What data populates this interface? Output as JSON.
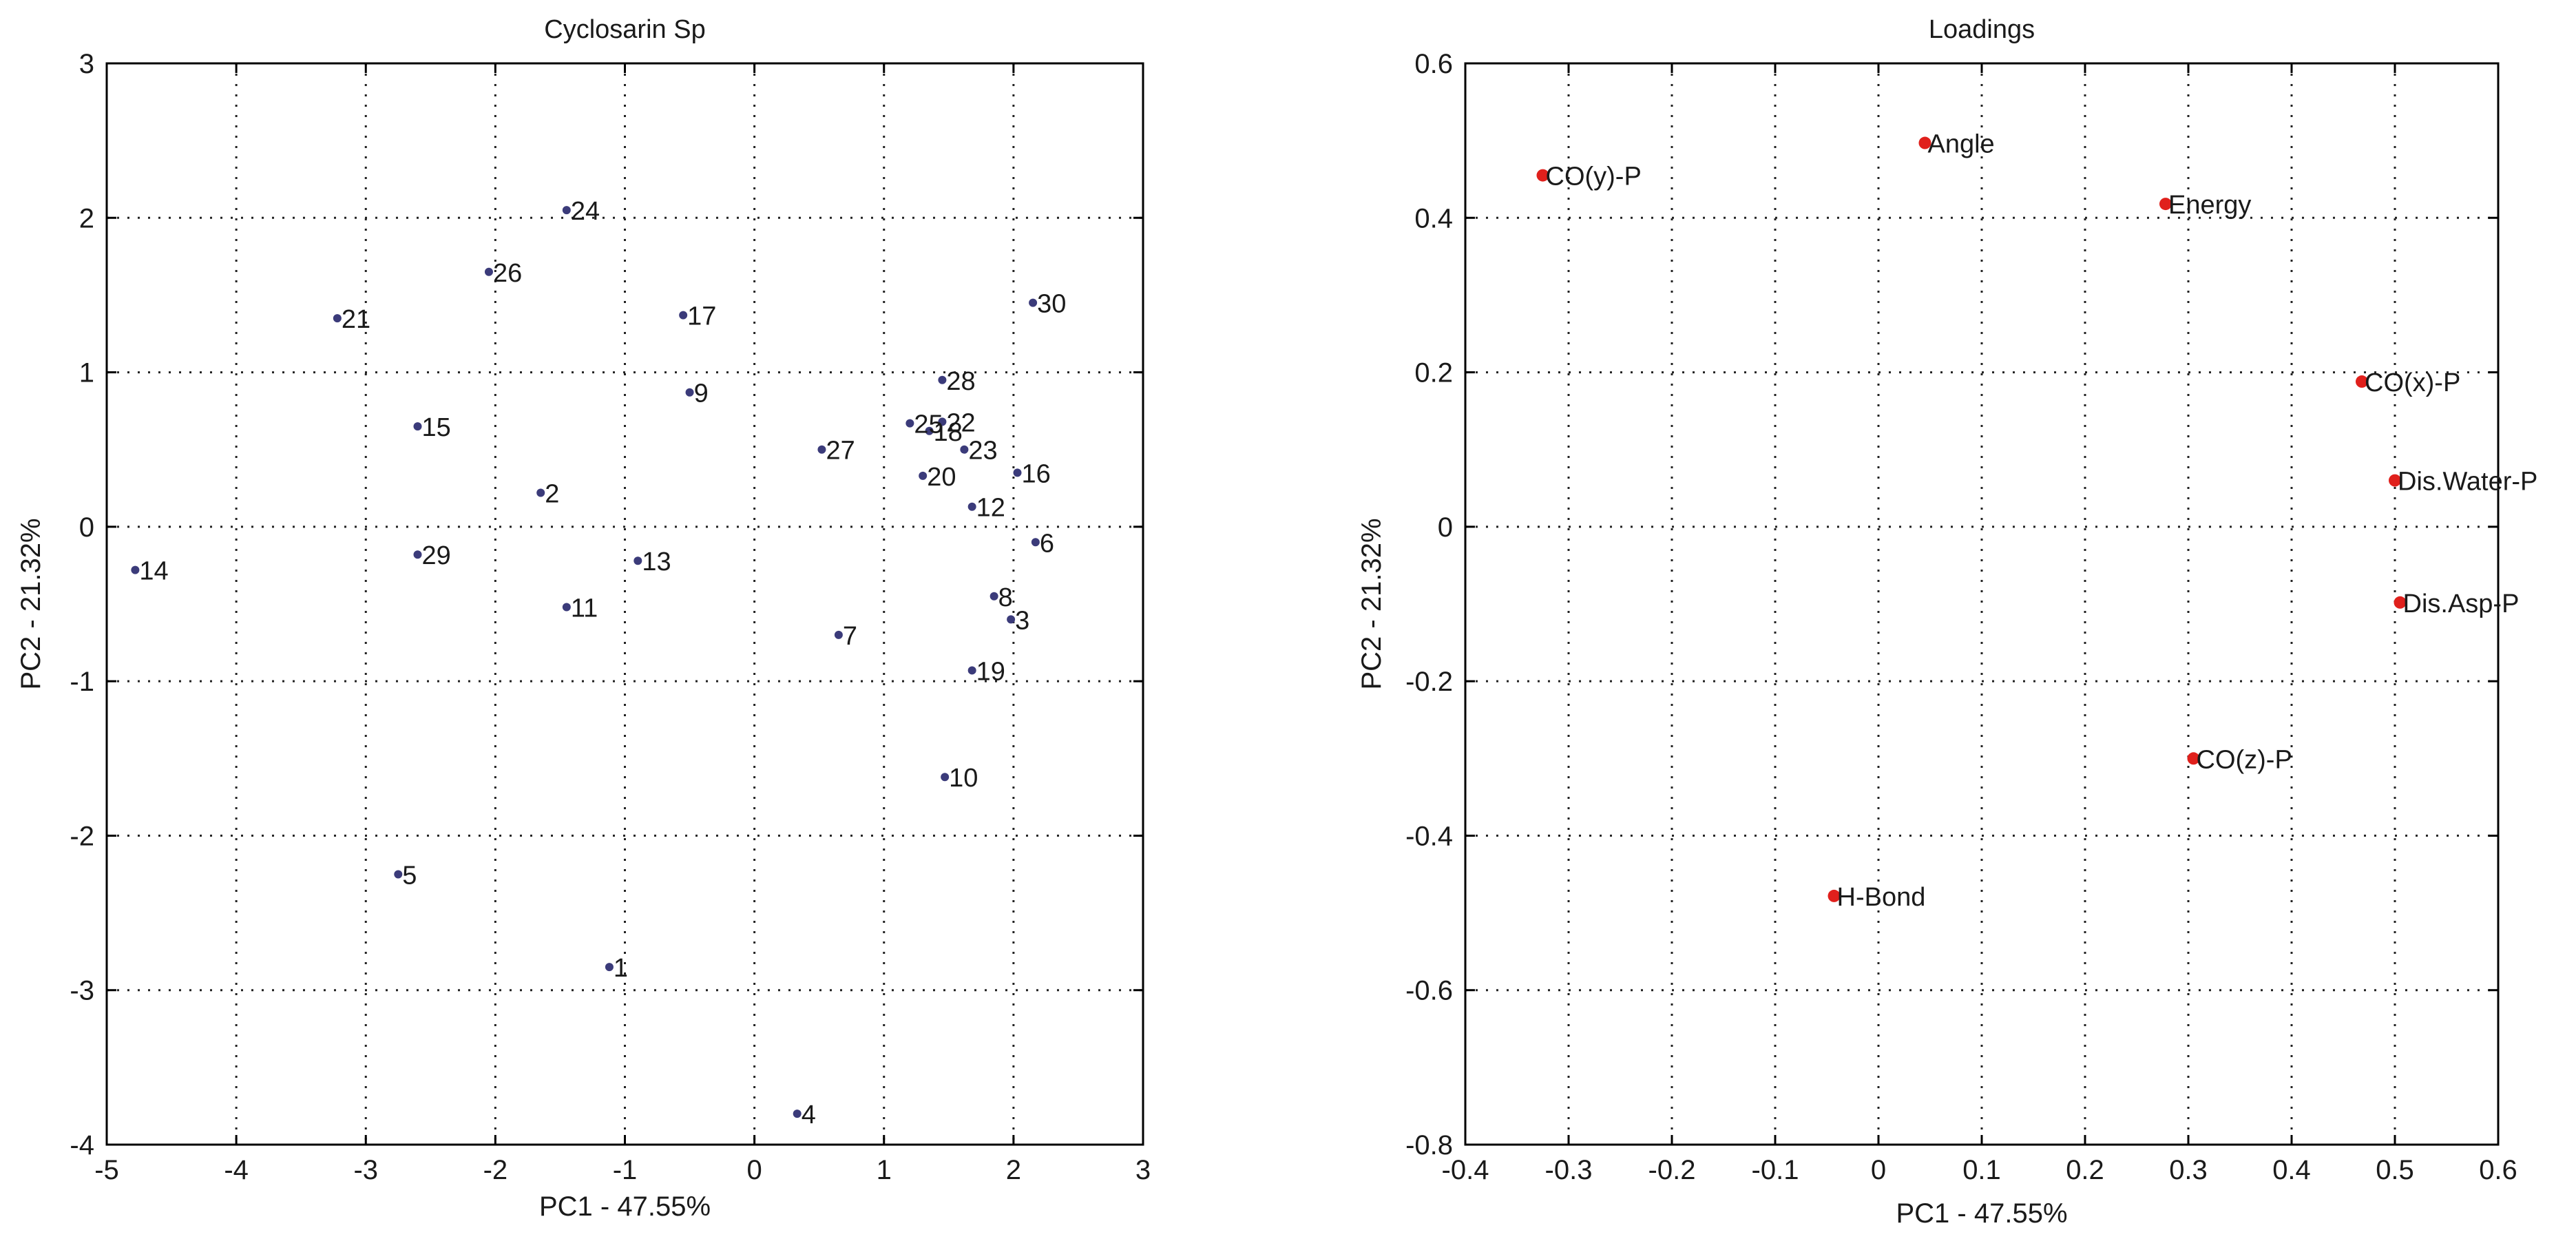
{
  "chart_data": [
    {
      "type": "scatter",
      "title": "Cyclosarin Sp",
      "xlabel": "PC1 - 47.55%",
      "ylabel": "PC2 - 21.32%",
      "xlim": [
        -5,
        3
      ],
      "ylim": [
        -4,
        3
      ],
      "xticks": [
        -5,
        -4,
        -3,
        -2,
        -1,
        0,
        1,
        2,
        3
      ],
      "yticks": [
        -4,
        -3,
        -2,
        -1,
        0,
        1,
        2,
        3
      ],
      "grid": true,
      "marker_color": "#3b3b7a",
      "points": [
        {
          "label": "1",
          "x": -1.12,
          "y": -2.85
        },
        {
          "label": "2",
          "x": -1.65,
          "y": 0.22
        },
        {
          "label": "3",
          "x": 1.98,
          "y": -0.6
        },
        {
          "label": "4",
          "x": 0.33,
          "y": -3.8
        },
        {
          "label": "5",
          "x": -2.75,
          "y": -2.25
        },
        {
          "label": "6",
          "x": 2.17,
          "y": -0.1
        },
        {
          "label": "7",
          "x": 0.65,
          "y": -0.7
        },
        {
          "label": "8",
          "x": 1.85,
          "y": -0.45
        },
        {
          "label": "9",
          "x": -0.5,
          "y": 0.87
        },
        {
          "label": "10",
          "x": 1.47,
          "y": -1.62
        },
        {
          "label": "11",
          "x": -1.45,
          "y": -0.52
        },
        {
          "label": "12",
          "x": 1.68,
          "y": 0.13
        },
        {
          "label": "13",
          "x": -0.9,
          "y": -0.22
        },
        {
          "label": "14",
          "x": -4.78,
          "y": -0.28
        },
        {
          "label": "15",
          "x": -2.6,
          "y": 0.65
        },
        {
          "label": "16",
          "x": 2.03,
          "y": 0.35
        },
        {
          "label": "17",
          "x": -0.55,
          "y": 1.37
        },
        {
          "label": "18",
          "x": 1.35,
          "y": 0.62
        },
        {
          "label": "19",
          "x": 1.68,
          "y": -0.93
        },
        {
          "label": "20",
          "x": 1.3,
          "y": 0.33
        },
        {
          "label": "21",
          "x": -3.22,
          "y": 1.35
        },
        {
          "label": "22",
          "x": 1.45,
          "y": 0.68
        },
        {
          "label": "23",
          "x": 1.62,
          "y": 0.5
        },
        {
          "label": "24",
          "x": -1.45,
          "y": 2.05
        },
        {
          "label": "25",
          "x": 1.2,
          "y": 0.67
        },
        {
          "label": "26",
          "x": -2.05,
          "y": 1.65
        },
        {
          "label": "27",
          "x": 0.52,
          "y": 0.5
        },
        {
          "label": "28",
          "x": 1.45,
          "y": 0.95
        },
        {
          "label": "29",
          "x": -2.6,
          "y": -0.18
        },
        {
          "label": "30",
          "x": 2.15,
          "y": 1.45
        }
      ]
    },
    {
      "type": "scatter",
      "title": "Loadings",
      "xlabel": "PC1 - 47.55%",
      "ylabel": "PC2 - 21.32%",
      "xlim": [
        -0.4,
        0.6
      ],
      "ylim": [
        -0.8,
        0.6
      ],
      "xticks": [
        -0.4,
        -0.3,
        -0.2,
        -0.1,
        0,
        0.1,
        0.2,
        0.3,
        0.4,
        0.5,
        0.6
      ],
      "yticks": [
        -0.8,
        -0.6,
        -0.4,
        -0.2,
        0,
        0.2,
        0.4,
        0.6
      ],
      "grid": true,
      "marker_color": "#e0201c",
      "points": [
        {
          "label": "CO(y)-P",
          "x": -0.325,
          "y": 0.455
        },
        {
          "label": "Angle",
          "x": 0.045,
          "y": 0.497
        },
        {
          "label": "Energy",
          "x": 0.278,
          "y": 0.418
        },
        {
          "label": "CO(x)-P",
          "x": 0.468,
          "y": 0.188
        },
        {
          "label": "Dis.Water-P",
          "x": 0.5,
          "y": 0.06
        },
        {
          "label": "Dis.Asp-P",
          "x": 0.505,
          "y": -0.098
        },
        {
          "label": "CO(z)-P",
          "x": 0.305,
          "y": -0.3
        },
        {
          "label": "H-Bond",
          "x": -0.043,
          "y": -0.478
        }
      ]
    }
  ]
}
